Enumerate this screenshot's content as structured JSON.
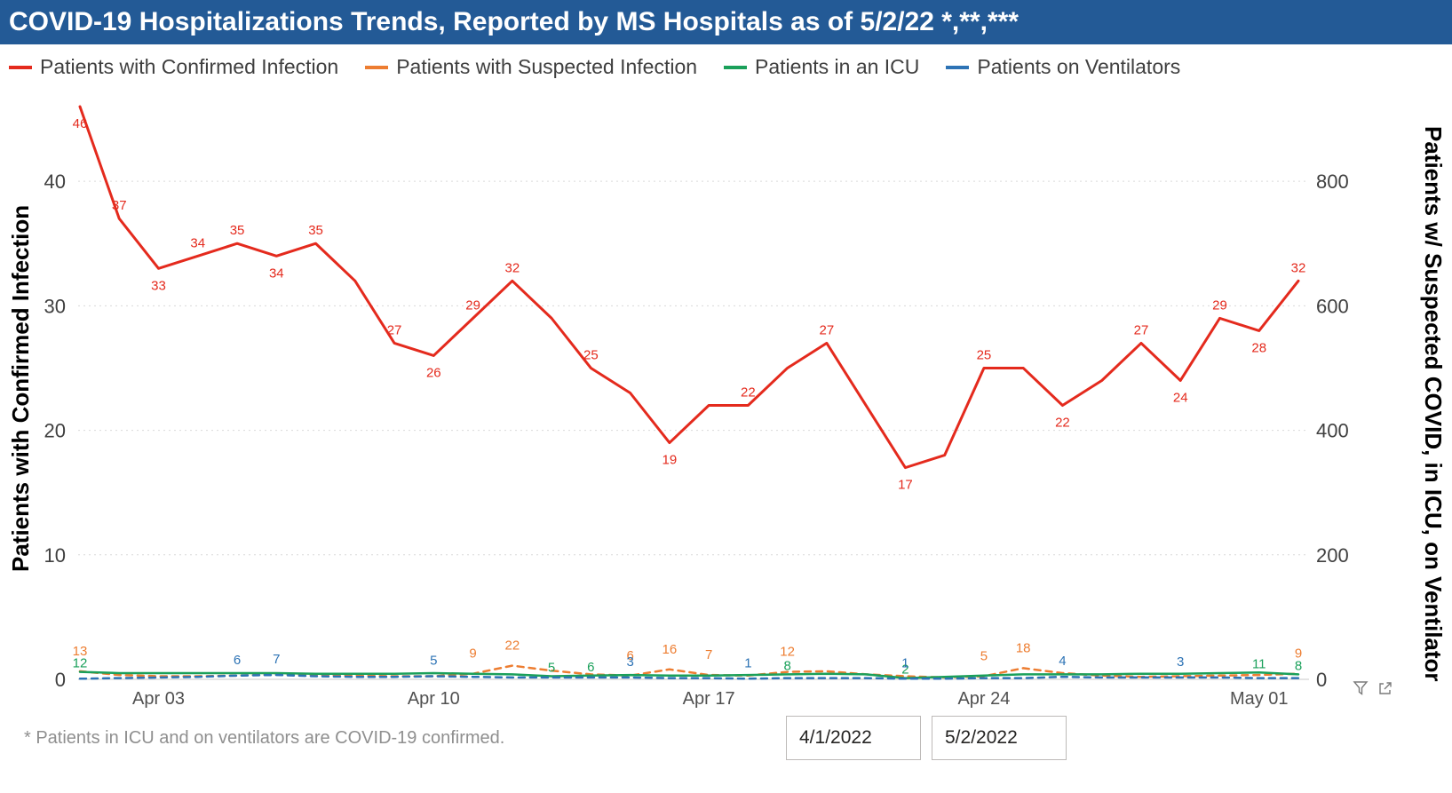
{
  "title_bar": {
    "title": "COVID-19 Hospitalizations Trends, Reported by MS Hospitals as of 5/2/22 *,**,***"
  },
  "legend": {
    "items": [
      {
        "label": "Patients with Confirmed Infection",
        "color": "#E42A1D"
      },
      {
        "label": "Patients with Suspected Infection",
        "color": "#ED7D31"
      },
      {
        "label": "Patients in an ICU",
        "color": "#1AA05A"
      },
      {
        "label": "Patients on Ventilators",
        "color": "#2D73B5"
      }
    ]
  },
  "chart_data": {
    "type": "line",
    "x": [
      "Apr 01",
      "Apr 02",
      "Apr 03",
      "Apr 04",
      "Apr 05",
      "Apr 06",
      "Apr 07",
      "Apr 08",
      "Apr 09",
      "Apr 10",
      "Apr 11",
      "Apr 12",
      "Apr 13",
      "Apr 14",
      "Apr 15",
      "Apr 16",
      "Apr 17",
      "Apr 18",
      "Apr 19",
      "Apr 20",
      "Apr 21",
      "Apr 22",
      "Apr 23",
      "Apr 24",
      "Apr 25",
      "Apr 26",
      "Apr 27",
      "Apr 28",
      "Apr 29",
      "Apr 30",
      "May 01",
      "May 02"
    ],
    "x_tick_labels": [
      "Apr 03",
      "Apr 10",
      "Apr 17",
      "Apr 24",
      "May 01"
    ],
    "x_tick_indices": [
      2,
      9,
      16,
      23,
      30
    ],
    "left_axis": {
      "label": "Patients with Confirmed Infection",
      "ticks": [
        0,
        10,
        20,
        30,
        40
      ],
      "max": 46
    },
    "right_axis": {
      "label": "Patients w/ Suspected COVID, in ICU, on Ventilator",
      "ticks": [
        0,
        200,
        400,
        600,
        800
      ],
      "max": 920
    },
    "grid": true,
    "legend_position": "top",
    "series": [
      {
        "name": "Patients with Confirmed Infection",
        "axis": "left",
        "color": "#E42A1D",
        "style": "solid",
        "values": [
          46,
          37,
          33,
          34,
          35,
          34,
          35,
          32,
          27,
          26,
          29,
          32,
          29,
          25,
          23,
          19,
          22,
          22,
          25,
          27,
          22,
          17,
          18,
          25,
          25,
          22,
          24,
          27,
          24,
          29,
          28,
          32
        ],
        "point_labels": {
          "0": 46,
          "1": 37,
          "2": 33,
          "3": 34,
          "4": 35,
          "5": 34,
          "6": 35,
          "8": 27,
          "9": 26,
          "10": 29,
          "11": 32,
          "13": 25,
          "15": 19,
          "17": 22,
          "19": 27,
          "21": 17,
          "23": 25,
          "25": 22,
          "27": 27,
          "28": 24,
          "29": 29,
          "30": 28,
          "31": 32
        }
      },
      {
        "name": "Patients with Suspected Infection",
        "axis": "right",
        "color": "#ED7D31",
        "style": "dashed",
        "values": [
          13,
          7,
          5,
          5,
          6,
          8,
          7,
          6,
          5,
          5,
          9,
          22,
          14,
          8,
          6,
          16,
          7,
          6,
          12,
          13,
          8,
          5,
          3,
          5,
          18,
          10,
          6,
          4,
          5,
          6,
          7,
          9
        ],
        "point_labels": {
          "0": 13,
          "10": 9,
          "11": 22,
          "14": 6,
          "15": 16,
          "16": 7,
          "18": 12,
          "23": 5,
          "24": 18,
          "31": 9
        }
      },
      {
        "name": "Patients in an ICU",
        "axis": "right",
        "color": "#1AA05A",
        "style": "solid",
        "values": [
          12,
          10,
          10,
          10,
          10,
          10,
          9,
          9,
          9,
          10,
          9,
          8,
          5,
          6,
          7,
          6,
          6,
          7,
          8,
          9,
          8,
          2,
          4,
          6,
          8,
          8,
          8,
          9,
          9,
          10,
          11,
          8
        ],
        "point_labels": {
          "0": 12,
          "12": 5,
          "13": 6,
          "18": 8,
          "21": 2,
          "30": 11,
          "31": 8
        }
      },
      {
        "name": "Patients on Ventilators",
        "axis": "right",
        "color": "#2D73B5",
        "style": "dashed",
        "values": [
          1,
          2,
          3,
          4,
          6,
          7,
          5,
          4,
          4,
          5,
          4,
          3,
          3,
          3,
          3,
          2,
          2,
          1,
          2,
          2,
          2,
          1,
          1,
          2,
          2,
          4,
          3,
          3,
          3,
          3,
          2,
          2
        ],
        "point_labels": {
          "4": 6,
          "5": 7,
          "9": 5,
          "14": 3,
          "17": 1,
          "21": 1,
          "25": 4,
          "28": 3
        }
      }
    ]
  },
  "footnote": "* Patients in ICU and on ventilators are COVID-19 confirmed.",
  "filters": {
    "start_date": "4/1/2022",
    "end_date": "5/2/2022"
  },
  "toolbar_icons": [
    {
      "name": "filter-icon"
    },
    {
      "name": "export-icon"
    }
  ]
}
